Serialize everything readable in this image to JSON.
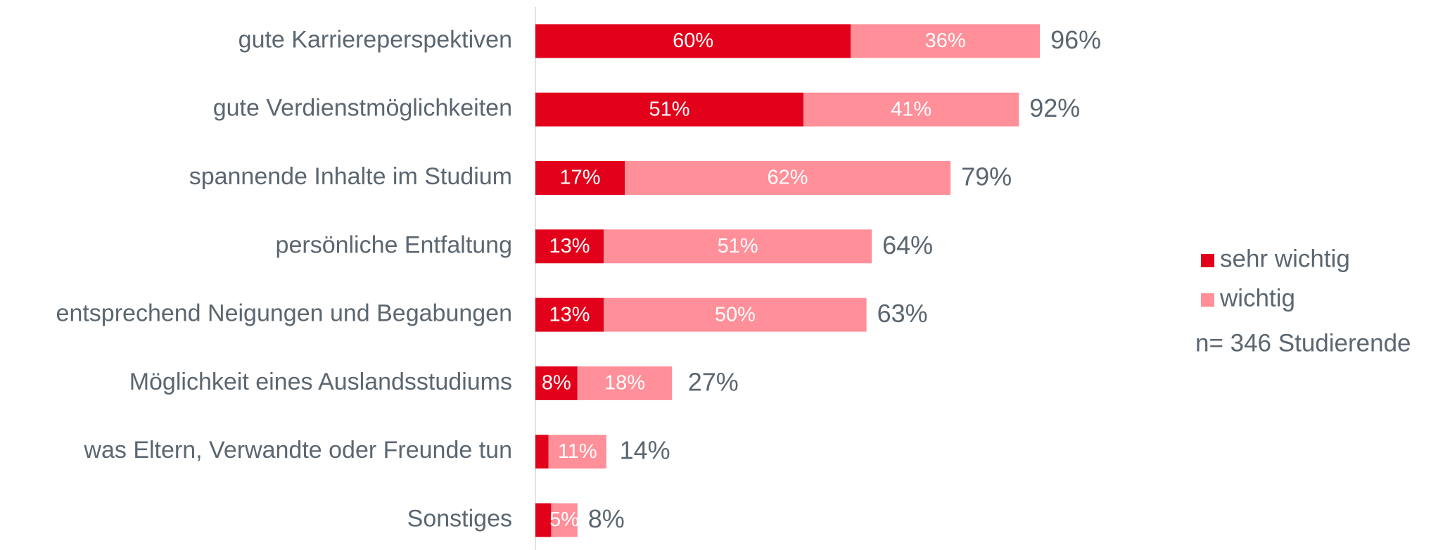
{
  "chart_data": {
    "type": "stacked_barh",
    "categories": [
      "gute Karriereperspektiven",
      "gute Verdienstmöglichkeiten",
      "spannende Inhalte im Studium",
      "persönliche Entfaltung",
      "entsprechend Neigungen und Begabungen",
      "Möglichkeit eines Auslandsstudiums",
      "was Eltern, Verwandte oder Freunde tun",
      "Sonstiges"
    ],
    "series": [
      {
        "name": "sehr wichtig",
        "color": "#e2001a",
        "values": [
          60,
          51,
          17,
          13,
          13,
          8,
          2.5,
          3
        ],
        "value_labels": [
          "60%",
          "51%",
          "17%",
          "13%",
          "13%",
          "8%",
          null,
          null
        ]
      },
      {
        "name": "wichtig",
        "color": "#ff8f99",
        "values": [
          36,
          41,
          62,
          51,
          50,
          18,
          11,
          5
        ],
        "value_labels": [
          "36%",
          "41%",
          "62%",
          "51%",
          "50%",
          "18%",
          "11%",
          "5%"
        ]
      }
    ],
    "totals": [
      96,
      92,
      79,
      64,
      63,
      27,
      14,
      8
    ],
    "total_labels": [
      "96%",
      "92%",
      "79%",
      "64%",
      "63%",
      "27%",
      "14%",
      "8%"
    ],
    "xlim": [
      0,
      100
    ],
    "legend": "right",
    "annotation": "n= 346 Studierende"
  }
}
